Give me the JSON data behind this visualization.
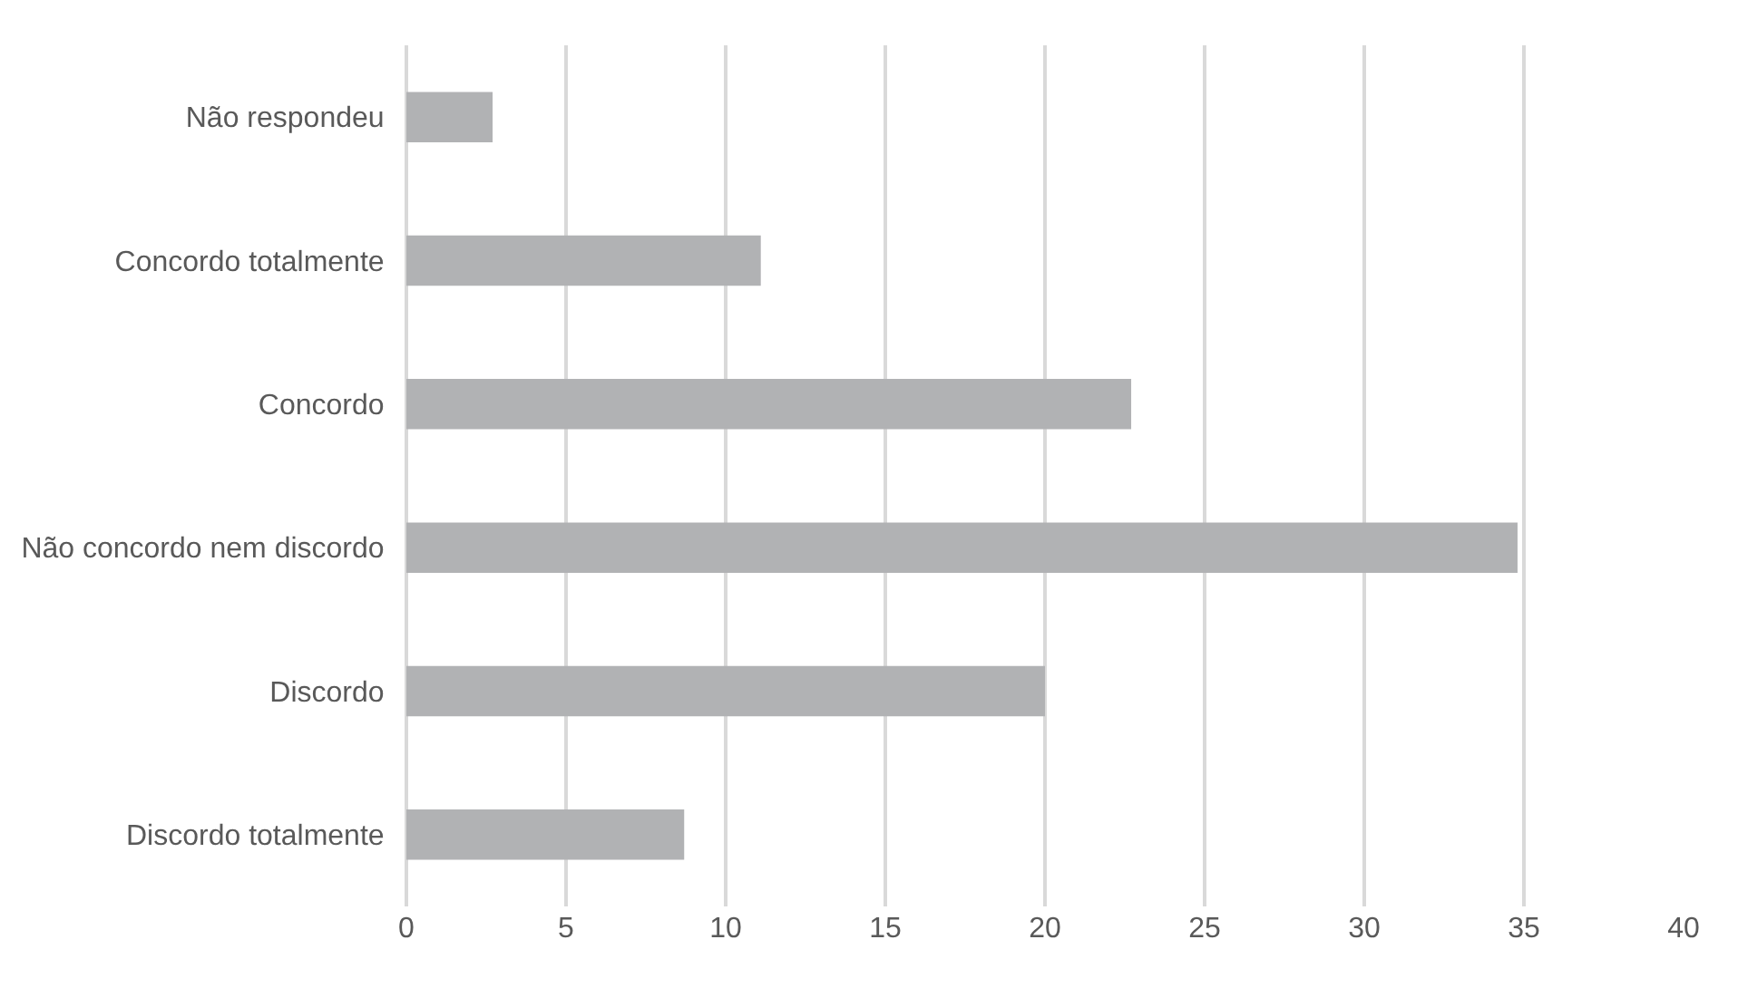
{
  "chart_data": {
    "type": "bar",
    "orientation": "horizontal",
    "categories": [
      "Não respondeu",
      "Concordo totalmente",
      "Concordo",
      "Não concordo nem discordo",
      "Discordo",
      "Discordo totalmente"
    ],
    "values": [
      2.7,
      11.1,
      22.7,
      34.8,
      20.0,
      8.7
    ],
    "color": "#b1b2b4",
    "xlim": [
      0,
      40
    ],
    "xticks": [
      0,
      5,
      10,
      15,
      20,
      25,
      30,
      35,
      40
    ],
    "grid": "x"
  }
}
